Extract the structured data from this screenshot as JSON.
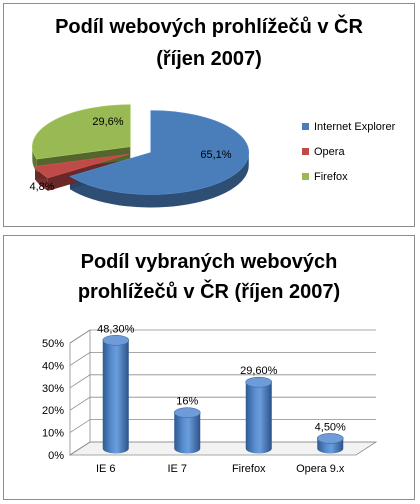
{
  "chart_data": [
    {
      "type": "pie",
      "title_line1": "Podíl webových prohlížečů v ČR",
      "title_line2": "(říjen 2007)",
      "slices": [
        {
          "name": "Internet Explorer",
          "value": 65.1,
          "label": "65,1%",
          "color": "#4a7ebb"
        },
        {
          "name": "Opera",
          "value": 4.8,
          "label": "4,8%",
          "color": "#be4b48"
        },
        {
          "name": "Firefox",
          "value": 29.6,
          "label": "29,6%",
          "color": "#98b954"
        }
      ],
      "legend_position": "right",
      "exploded": true,
      "three_d": true
    },
    {
      "type": "bar",
      "title_line1": "Podíl vybraných webových",
      "title_line2": "prohlížečů v ČR (říjen 2007)",
      "categories": [
        "IE 6",
        "IE 7",
        "Firefox",
        "Opera 9.x"
      ],
      "values": [
        48.3,
        16,
        29.6,
        4.5
      ],
      "data_labels": [
        "48,30%",
        "16%",
        "29,60%",
        "4,50%"
      ],
      "ylim": [
        0,
        50
      ],
      "yticks": [
        "0%",
        "10%",
        "20%",
        "30%",
        "40%",
        "50%"
      ],
      "grid": true,
      "bar_shape": "cylinder",
      "color": "#4a7ebb"
    }
  ]
}
